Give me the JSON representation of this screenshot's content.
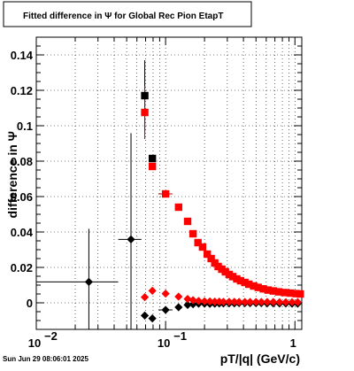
{
  "title": "Fitted difference in  Ψ  for Global Rec Pion EtapT",
  "timestamp": "Sun Jun 29 08:06:01 2025",
  "chart_data": {
    "type": "scatter",
    "title": "Fitted difference in  Ψ  for Global Rec Pion EtapT",
    "xlabel": "pT/|q| (GeV/c)",
    "ylabel": "difference in Ψ",
    "x_scale": "log",
    "xlim": [
      0.01,
      1.13
    ],
    "ylim": [
      -0.015,
      0.15
    ],
    "grid": true,
    "x_ticks": [
      {
        "value": 0.01,
        "label": "10",
        "exp": "−2"
      },
      {
        "value": 0.1,
        "label": "10",
        "exp": "−1"
      },
      {
        "value": 1,
        "label": "1",
        "exp": ""
      }
    ],
    "y_ticks": [
      {
        "value": 0,
        "label": "0"
      },
      {
        "value": 0.02,
        "label": "0.02"
      },
      {
        "value": 0.04,
        "label": "0.04"
      },
      {
        "value": 0.06,
        "label": "0.06"
      },
      {
        "value": 0.08,
        "label": "0.08"
      },
      {
        "value": 0.1,
        "label": "0.1"
      },
      {
        "value": 0.12,
        "label": "0.12"
      },
      {
        "value": 0.14,
        "label": "0.14"
      }
    ],
    "series": [
      {
        "marker": "square",
        "color": "#000000",
        "points": [
          {
            "x": 0.069,
            "y": 0.117,
            "yerr": 0.02
          },
          {
            "x": 0.079,
            "y": 0.0815,
            "yerr": 0.002
          }
        ]
      },
      {
        "marker": "square",
        "color": "#ff0000",
        "points": [
          {
            "x": 0.069,
            "y": 0.1075,
            "yerr": 0.015
          },
          {
            "x": 0.079,
            "y": 0.077,
            "yerr": 0.002
          },
          {
            "x": 0.1,
            "y": 0.0615,
            "xerr": [
              0.088,
              0.113
            ]
          },
          {
            "x": 0.126,
            "y": 0.054
          },
          {
            "x": 0.148,
            "y": 0.046
          },
          {
            "x": 0.163,
            "y": 0.039
          },
          {
            "x": 0.178,
            "y": 0.034
          },
          {
            "x": 0.193,
            "y": 0.0315
          },
          {
            "x": 0.21,
            "y": 0.0275
          },
          {
            "x": 0.225,
            "y": 0.025
          },
          {
            "x": 0.24,
            "y": 0.0225
          },
          {
            "x": 0.255,
            "y": 0.0205
          },
          {
            "x": 0.272,
            "y": 0.019
          },
          {
            "x": 0.29,
            "y": 0.0175
          },
          {
            "x": 0.31,
            "y": 0.016
          },
          {
            "x": 0.33,
            "y": 0.0148
          },
          {
            "x": 0.355,
            "y": 0.0135
          },
          {
            "x": 0.38,
            "y": 0.0125
          },
          {
            "x": 0.41,
            "y": 0.0115
          },
          {
            "x": 0.44,
            "y": 0.0105
          },
          {
            "x": 0.48,
            "y": 0.0095
          },
          {
            "x": 0.52,
            "y": 0.0087
          },
          {
            "x": 0.57,
            "y": 0.0079
          },
          {
            "x": 0.62,
            "y": 0.0072
          },
          {
            "x": 0.68,
            "y": 0.0067
          },
          {
            "x": 0.75,
            "y": 0.0062
          },
          {
            "x": 0.83,
            "y": 0.0058
          },
          {
            "x": 0.92,
            "y": 0.0055
          },
          {
            "x": 1.02,
            "y": 0.0052
          },
          {
            "x": 1.1,
            "y": 0.005
          }
        ]
      },
      {
        "marker": "diamond",
        "color": "#000000",
        "points": [
          {
            "x": 0.0255,
            "y": 0.0118,
            "xerr": [
              0.01,
              0.043
            ],
            "yerr": 0.03
          },
          {
            "x": 0.054,
            "y": 0.0358,
            "xerr": [
              0.043,
              0.065
            ],
            "yerr": 0.06
          },
          {
            "x": 0.069,
            "y": -0.0072
          },
          {
            "x": 0.079,
            "y": -0.0088
          },
          {
            "x": 0.1,
            "y": -0.004,
            "xerr": [
              0.088,
              0.113
            ]
          },
          {
            "x": 0.126,
            "y": -0.0025
          },
          {
            "x": 0.148,
            "y": -0.0012
          },
          {
            "x": 0.163,
            "y": -0.0008
          },
          {
            "x": 0.18,
            "y": -0.0005
          },
          {
            "x": 0.2,
            "y": -0.0005
          },
          {
            "x": 0.22,
            "y": -0.0006
          },
          {
            "x": 0.24,
            "y": -0.0005
          },
          {
            "x": 0.26,
            "y": -0.0004
          },
          {
            "x": 0.28,
            "y": -0.0004
          },
          {
            "x": 0.31,
            "y": -0.0003
          },
          {
            "x": 0.34,
            "y": -0.0003
          },
          {
            "x": 0.37,
            "y": -0.0002
          },
          {
            "x": 0.41,
            "y": -0.0002
          },
          {
            "x": 0.45,
            "y": -0.0002
          },
          {
            "x": 0.5,
            "y": -0.0002
          },
          {
            "x": 0.55,
            "y": -0.0002
          },
          {
            "x": 0.61,
            "y": -0.0003
          },
          {
            "x": 0.68,
            "y": -0.0003
          },
          {
            "x": 0.76,
            "y": -0.0004
          },
          {
            "x": 0.85,
            "y": -0.0004
          },
          {
            "x": 0.95,
            "y": -0.0005
          },
          {
            "x": 1.05,
            "y": -0.0005
          }
        ]
      },
      {
        "marker": "diamond",
        "color": "#ff0000",
        "points": [
          {
            "x": 0.069,
            "y": 0.0032
          },
          {
            "x": 0.079,
            "y": 0.0068
          },
          {
            "x": 0.1,
            "y": 0.0052
          },
          {
            "x": 0.126,
            "y": 0.0035
          },
          {
            "x": 0.148,
            "y": 0.0022
          },
          {
            "x": 0.163,
            "y": 0.0015
          },
          {
            "x": 0.18,
            "y": 0.0011
          },
          {
            "x": 0.2,
            "y": 0.0009
          },
          {
            "x": 0.22,
            "y": 0.0008
          },
          {
            "x": 0.24,
            "y": 0.0007
          },
          {
            "x": 0.26,
            "y": 0.0007
          },
          {
            "x": 0.28,
            "y": 0.0006
          },
          {
            "x": 0.31,
            "y": 0.0006
          },
          {
            "x": 0.34,
            "y": 0.0006
          },
          {
            "x": 0.37,
            "y": 0.0005
          },
          {
            "x": 0.41,
            "y": 0.0005
          },
          {
            "x": 0.45,
            "y": 0.0005
          },
          {
            "x": 0.5,
            "y": 0.0005
          },
          {
            "x": 0.55,
            "y": 0.0005
          },
          {
            "x": 0.61,
            "y": 0.0005
          },
          {
            "x": 0.68,
            "y": 0.0005
          },
          {
            "x": 0.76,
            "y": 0.0004
          },
          {
            "x": 0.85,
            "y": 0.0004
          },
          {
            "x": 0.95,
            "y": 0.0004
          },
          {
            "x": 1.05,
            "y": 0.0004
          }
        ]
      }
    ]
  }
}
